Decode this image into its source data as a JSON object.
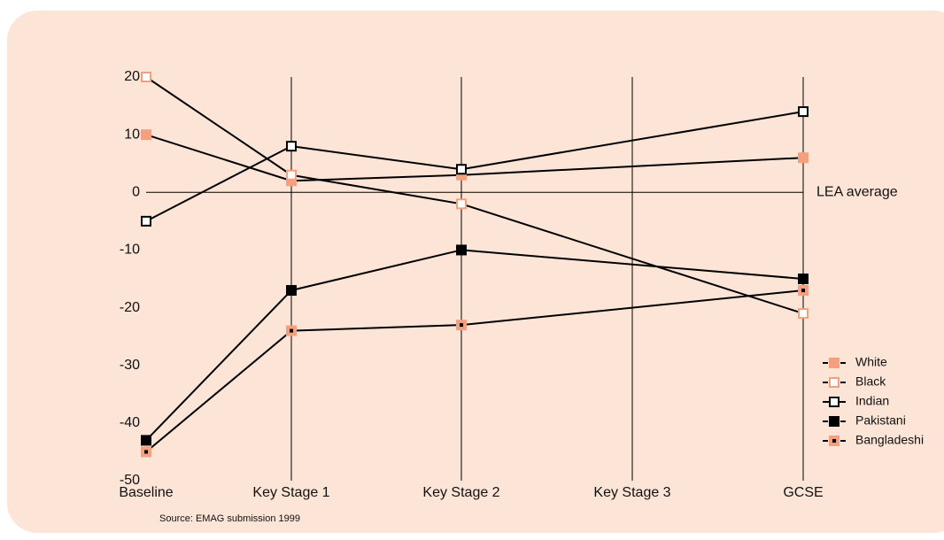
{
  "chart_data": {
    "type": "line",
    "categories": [
      "Baseline",
      "Key Stage 1",
      "Key Stage 2",
      "Key Stage 3",
      "GCSE"
    ],
    "series": [
      {
        "name": "White",
        "color": "#f4a07e",
        "fill": "#f4a07e",
        "values": [
          10,
          2,
          3,
          null,
          6
        ]
      },
      {
        "name": "Black",
        "color": "#f4a07e",
        "fill": "#ffffff",
        "values": [
          20,
          3,
          -2,
          null,
          -21
        ]
      },
      {
        "name": "Indian",
        "color": "#000000",
        "fill": "#ffffff",
        "values": [
          -5,
          8,
          4,
          null,
          14
        ]
      },
      {
        "name": "Pakistani",
        "color": "#000000",
        "fill": "#000000",
        "values": [
          -43,
          -17,
          -10,
          null,
          -15
        ]
      },
      {
        "name": "Bangladeshi",
        "color": "#f4a07e",
        "fill": "#f4a07e",
        "dot": "#000000",
        "values": [
          -45,
          -24,
          -23,
          null,
          -17
        ]
      }
    ],
    "ylim": [
      -50,
      20
    ],
    "yticks": [
      -50,
      -40,
      -30,
      -20,
      -10,
      0,
      10,
      20
    ],
    "reference_line": {
      "value": 0,
      "label": "LEA average"
    },
    "source": "Source: EMAG submission 1999",
    "legend": "lower right",
    "grid": "vertical"
  }
}
